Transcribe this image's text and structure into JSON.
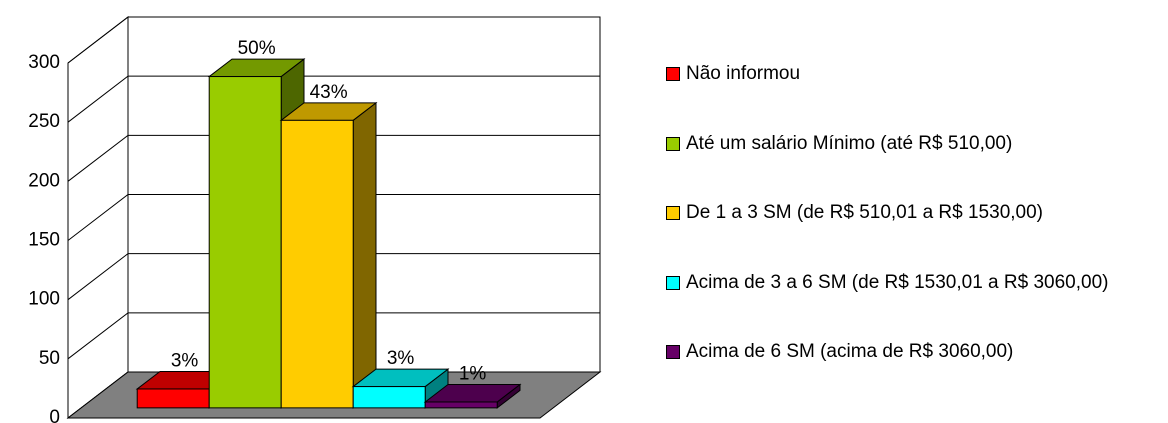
{
  "chart_data": {
    "type": "bar3d",
    "categories": [
      null
    ],
    "ylim": [
      0,
      300
    ],
    "yticks": [
      0,
      50,
      100,
      150,
      200,
      250,
      300
    ],
    "grid": true,
    "legend": "right",
    "series": [
      {
        "name": "Não informou",
        "color": "#ff0000",
        "values": [
          16
        ],
        "value_labels": [
          "3%"
        ]
      },
      {
        "name": "Até um salário Mínimo (até R$ 510,00)",
        "color": "#99cc00",
        "values": [
          280
        ],
        "value_labels": [
          "50%"
        ]
      },
      {
        "name": "De 1 a 3 SM (de R$ 510,01 a R$ 1530,00)",
        "color": "#ffcc00",
        "values": [
          243
        ],
        "value_labels": [
          "43%"
        ]
      },
      {
        "name": "Acima de 3 a 6 SM (de R$ 1530,01 a R$ 3060,00)",
        "color": "#00ffff",
        "values": [
          18
        ],
        "value_labels": [
          "3%"
        ]
      },
      {
        "name": "Acima de 6 SM (acima de R$ 3060,00)",
        "color": "#660066",
        "values": [
          5
        ],
        "value_labels": [
          "1%"
        ]
      }
    ]
  }
}
